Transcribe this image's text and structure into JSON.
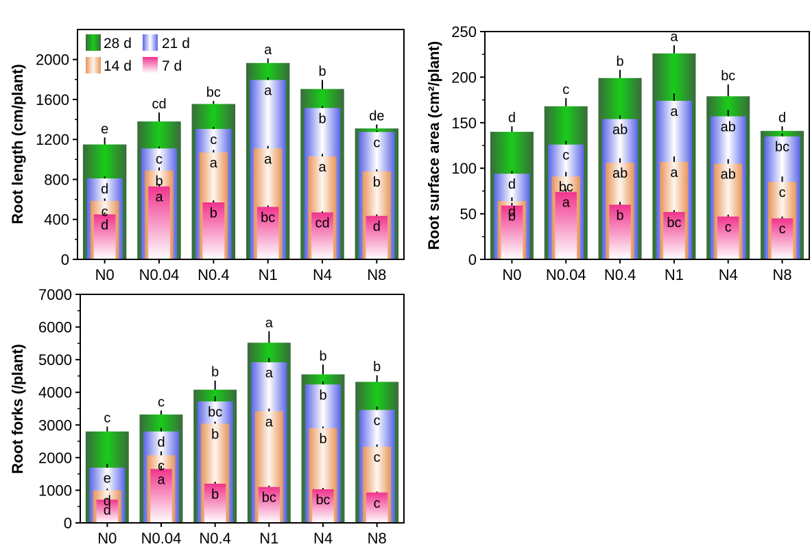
{
  "colors": {
    "d28_dark": "#3a6b3c",
    "d28_light": "#19cc19",
    "d21_dark": "#5b66e8",
    "d21_light": "#ffffff",
    "d14_dark": "#e8955a",
    "d14_light": "#fff6ee",
    "d7_dark": "#f0348d",
    "d7_light": "#ffffff"
  },
  "chart_data": [
    {
      "id": "length",
      "type": "bar",
      "ylabel": "Root length (cm/plant)",
      "ylim": [
        0,
        2300
      ],
      "yticks": [
        0,
        400,
        800,
        1200,
        1600,
        2000
      ],
      "categories": [
        "N0",
        "N0.04",
        "N0.4",
        "N1",
        "N4",
        "N8"
      ],
      "legend": {
        "position": "top-left",
        "items": [
          "28 d",
          "21 d",
          "14 d",
          "7 d"
        ]
      },
      "series": [
        {
          "name": "28 d",
          "values": [
            1150,
            1380,
            1555,
            1965,
            1705,
            1310
          ],
          "err": [
            70,
            90,
            30,
            45,
            90,
            40
          ],
          "letters": [
            "e",
            "cd",
            "bc",
            "a",
            "b",
            "de"
          ]
        },
        {
          "name": "21 d",
          "values": [
            810,
            1110,
            1305,
            1795,
            1515,
            1275
          ],
          "err": [
            20,
            20,
            20,
            25,
            20,
            15
          ],
          "letters": [
            "d",
            "c",
            "c",
            "a",
            "b",
            "c"
          ]
        },
        {
          "name": "14 d",
          "values": [
            585,
            890,
            1070,
            1110,
            1030,
            880
          ],
          "err": [
            25,
            30,
            25,
            25,
            25,
            20
          ],
          "letters": [
            "c",
            "b",
            "a",
            "a",
            "a",
            "b"
          ]
        },
        {
          "name": "7 d",
          "values": [
            450,
            730,
            570,
            525,
            470,
            435
          ],
          "err": [
            20,
            25,
            20,
            15,
            10,
            15
          ],
          "letters": [
            "d",
            "a",
            "b",
            "bc",
            "cd",
            "d"
          ]
        }
      ]
    },
    {
      "id": "surface",
      "type": "bar",
      "ylabel": "Root surface area (cm²/plant)",
      "ylim": [
        0,
        250
      ],
      "yticks": [
        0,
        50,
        100,
        150,
        200,
        250
      ],
      "categories": [
        "N0",
        "N0.04",
        "N0.4",
        "N1",
        "N4",
        "N8"
      ],
      "series": [
        {
          "name": "28 d",
          "values": [
            140,
            168,
            199,
            226,
            179,
            141
          ],
          "err": [
            6,
            9,
            9,
            9,
            13,
            5
          ],
          "letters": [
            "d",
            "c",
            "b",
            "a",
            "bc",
            "d"
          ]
        },
        {
          "name": "21 d",
          "values": [
            94,
            126,
            154,
            174,
            157,
            135
          ],
          "err": [
            3,
            4,
            4,
            8,
            7,
            3
          ],
          "letters": [
            "d",
            "c",
            "ab",
            "a",
            "ab",
            "bc"
          ]
        },
        {
          "name": "14 d",
          "values": [
            64,
            91,
            106,
            107,
            105,
            85
          ],
          "err": [
            4,
            5,
            5,
            6,
            5,
            6
          ],
          "letters": [
            "d",
            "bc",
            "ab",
            "a",
            "ab",
            "c"
          ]
        },
        {
          "name": "7 d",
          "values": [
            59,
            74,
            60,
            52,
            47,
            45
          ],
          "err": [
            3,
            3,
            3,
            2,
            2,
            2
          ],
          "letters": [
            "b",
            "a",
            "b",
            "bc",
            "c",
            "c"
          ]
        }
      ]
    },
    {
      "id": "forks",
      "type": "bar",
      "ylabel": "Root forks (/plant)",
      "ylim": [
        0,
        7000
      ],
      "yticks": [
        0,
        1000,
        2000,
        3000,
        4000,
        5000,
        6000,
        7000
      ],
      "categories": [
        "N0",
        "N0.04",
        "N0.4",
        "N1",
        "N4",
        "N8"
      ],
      "series": [
        {
          "name": "28 d",
          "values": [
            2800,
            3320,
            4080,
            5520,
            4550,
            4320
          ],
          "err": [
            150,
            120,
            280,
            350,
            300,
            200
          ],
          "letters": [
            "c",
            "c",
            "b",
            "a",
            "b",
            "b"
          ]
        },
        {
          "name": "21 d",
          "values": [
            1690,
            2800,
            3720,
            4920,
            4240,
            3460
          ],
          "err": [
            120,
            110,
            160,
            130,
            90,
            100
          ],
          "letters": [
            "e",
            "d",
            "bc",
            "a",
            "b",
            "c"
          ]
        },
        {
          "name": "14 d",
          "values": [
            1000,
            2070,
            3040,
            3420,
            2900,
            2330
          ],
          "err": [
            50,
            120,
            60,
            80,
            50,
            70
          ],
          "letters": [
            "d",
            "c",
            "b",
            "a",
            "b",
            "c"
          ]
        },
        {
          "name": "7 d",
          "values": [
            710,
            1650,
            1200,
            1100,
            1030,
            930
          ],
          "err": [
            30,
            100,
            60,
            40,
            40,
            30
          ],
          "letters": [
            "d",
            "a",
            "b",
            "bc",
            "bc",
            "c"
          ]
        }
      ]
    }
  ]
}
